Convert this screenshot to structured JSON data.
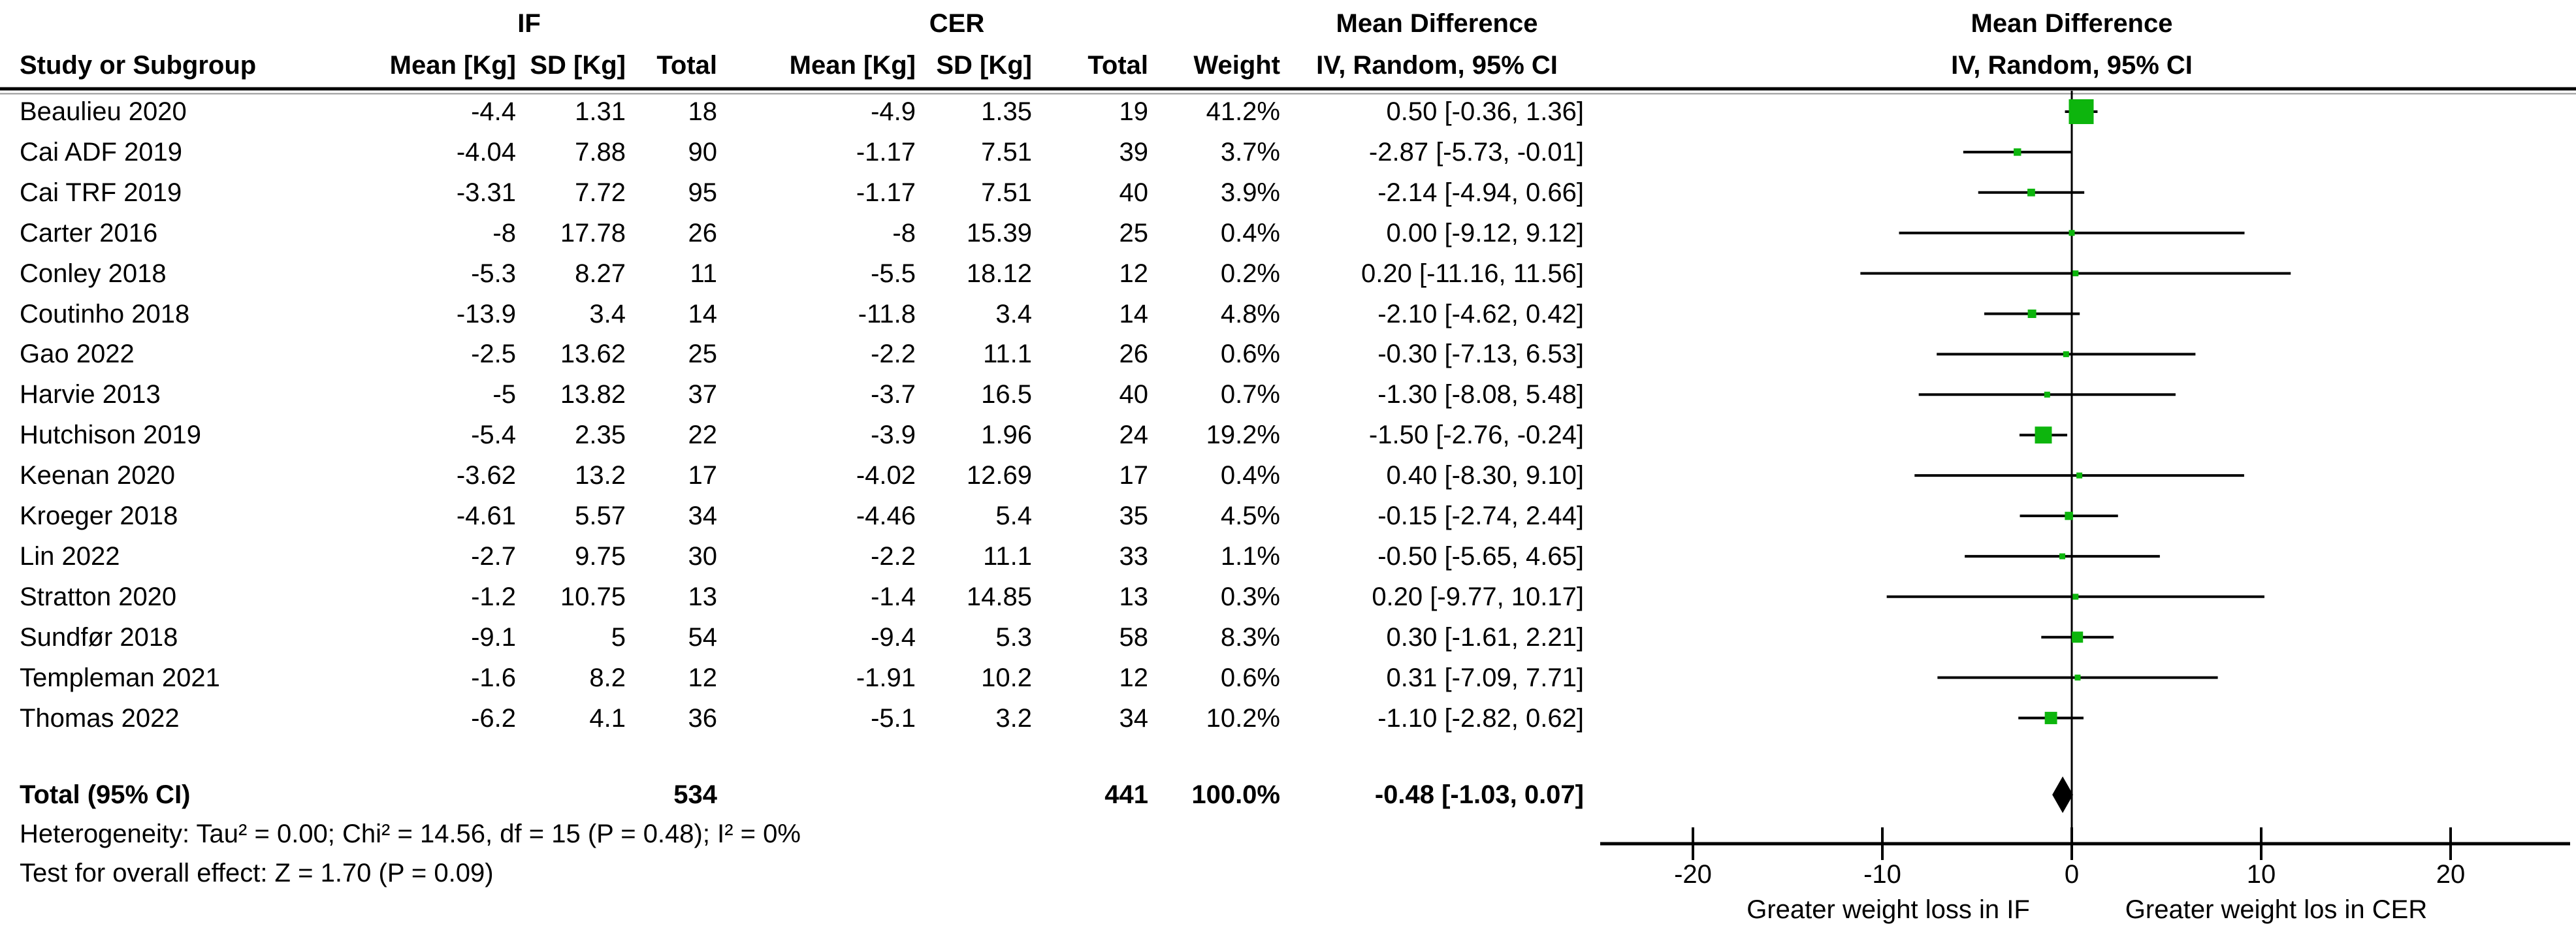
{
  "chart_data": {
    "type": "forest",
    "header": {
      "group_if": "IF",
      "group_cer": "CER",
      "md_title": "Mean Difference",
      "iv_sub": "IV, Random, 95% CI",
      "study": "Study or Subgroup",
      "mean": "Mean [Kg]",
      "sd": "SD [Kg]",
      "total": "Total",
      "weight": "Weight"
    },
    "studies": [
      {
        "name": "Beaulieu 2020",
        "if_mean": "-4.4",
        "if_sd": "1.31",
        "if_total": "18",
        "cer_mean": "-4.9",
        "cer_sd": "1.35",
        "cer_total": "19",
        "weight": "41.2%",
        "ci": "0.50 [-0.36, 1.36]",
        "est": 0.5,
        "lo": -0.36,
        "hi": 1.36,
        "w_pct": 41.2
      },
      {
        "name": "Cai ADF 2019",
        "if_mean": "-4.04",
        "if_sd": "7.88",
        "if_total": "90",
        "cer_mean": "-1.17",
        "cer_sd": "7.51",
        "cer_total": "39",
        "weight": "3.7%",
        "ci": "-2.87 [-5.73, -0.01]",
        "est": -2.87,
        "lo": -5.73,
        "hi": -0.01,
        "w_pct": 3.7
      },
      {
        "name": "Cai TRF 2019",
        "if_mean": "-3.31",
        "if_sd": "7.72",
        "if_total": "95",
        "cer_mean": "-1.17",
        "cer_sd": "7.51",
        "cer_total": "40",
        "weight": "3.9%",
        "ci": "-2.14 [-4.94, 0.66]",
        "est": -2.14,
        "lo": -4.94,
        "hi": 0.66,
        "w_pct": 3.9
      },
      {
        "name": "Carter 2016",
        "if_mean": "-8",
        "if_sd": "17.78",
        "if_total": "26",
        "cer_mean": "-8",
        "cer_sd": "15.39",
        "cer_total": "25",
        "weight": "0.4%",
        "ci": "0.00 [-9.12, 9.12]",
        "est": 0.0,
        "lo": -9.12,
        "hi": 9.12,
        "w_pct": 0.4
      },
      {
        "name": "Conley 2018",
        "if_mean": "-5.3",
        "if_sd": "8.27",
        "if_total": "11",
        "cer_mean": "-5.5",
        "cer_sd": "18.12",
        "cer_total": "12",
        "weight": "0.2%",
        "ci": "0.20 [-11.16, 11.56]",
        "est": 0.2,
        "lo": -11.16,
        "hi": 11.56,
        "w_pct": 0.2
      },
      {
        "name": "Coutinho 2018",
        "if_mean": "-13.9",
        "if_sd": "3.4",
        "if_total": "14",
        "cer_mean": "-11.8",
        "cer_sd": "3.4",
        "cer_total": "14",
        "weight": "4.8%",
        "ci": "-2.10 [-4.62, 0.42]",
        "est": -2.1,
        "lo": -4.62,
        "hi": 0.42,
        "w_pct": 4.8
      },
      {
        "name": "Gao 2022",
        "if_mean": "-2.5",
        "if_sd": "13.62",
        "if_total": "25",
        "cer_mean": "-2.2",
        "cer_sd": "11.1",
        "cer_total": "26",
        "weight": "0.6%",
        "ci": "-0.30 [-7.13, 6.53]",
        "est": -0.3,
        "lo": -7.13,
        "hi": 6.53,
        "w_pct": 0.6
      },
      {
        "name": "Harvie 2013",
        "if_mean": "-5",
        "if_sd": "13.82",
        "if_total": "37",
        "cer_mean": "-3.7",
        "cer_sd": "16.5",
        "cer_total": "40",
        "weight": "0.7%",
        "ci": "-1.30 [-8.08, 5.48]",
        "est": -1.3,
        "lo": -8.08,
        "hi": 5.48,
        "w_pct": 0.7
      },
      {
        "name": "Hutchison 2019",
        "if_mean": "-5.4",
        "if_sd": "2.35",
        "if_total": "22",
        "cer_mean": "-3.9",
        "cer_sd": "1.96",
        "cer_total": "24",
        "weight": "19.2%",
        "ci": "-1.50 [-2.76, -0.24]",
        "est": -1.5,
        "lo": -2.76,
        "hi": -0.24,
        "w_pct": 19.2
      },
      {
        "name": "Keenan 2020",
        "if_mean": "-3.62",
        "if_sd": "13.2",
        "if_total": "17",
        "cer_mean": "-4.02",
        "cer_sd": "12.69",
        "cer_total": "17",
        "weight": "0.4%",
        "ci": "0.40 [-8.30, 9.10]",
        "est": 0.4,
        "lo": -8.3,
        "hi": 9.1,
        "w_pct": 0.4
      },
      {
        "name": "Kroeger 2018",
        "if_mean": "-4.61",
        "if_sd": "5.57",
        "if_total": "34",
        "cer_mean": "-4.46",
        "cer_sd": "5.4",
        "cer_total": "35",
        "weight": "4.5%",
        "ci": "-0.15 [-2.74, 2.44]",
        "est": -0.15,
        "lo": -2.74,
        "hi": 2.44,
        "w_pct": 4.5
      },
      {
        "name": "Lin 2022",
        "if_mean": "-2.7",
        "if_sd": "9.75",
        "if_total": "30",
        "cer_mean": "-2.2",
        "cer_sd": "11.1",
        "cer_total": "33",
        "weight": "1.1%",
        "ci": "-0.50 [-5.65, 4.65]",
        "est": -0.5,
        "lo": -5.65,
        "hi": 4.65,
        "w_pct": 1.1
      },
      {
        "name": "Stratton 2020",
        "if_mean": "-1.2",
        "if_sd": "10.75",
        "if_total": "13",
        "cer_mean": "-1.4",
        "cer_sd": "14.85",
        "cer_total": "13",
        "weight": "0.3%",
        "ci": "0.20 [-9.77, 10.17]",
        "est": 0.2,
        "lo": -9.77,
        "hi": 10.17,
        "w_pct": 0.3
      },
      {
        "name": "Sundfør 2018",
        "if_mean": "-9.1",
        "if_sd": "5",
        "if_total": "54",
        "cer_mean": "-9.4",
        "cer_sd": "5.3",
        "cer_total": "58",
        "weight": "8.3%",
        "ci": "0.30 [-1.61, 2.21]",
        "est": 0.3,
        "lo": -1.61,
        "hi": 2.21,
        "w_pct": 8.3
      },
      {
        "name": "Templeman 2021",
        "if_mean": "-1.6",
        "if_sd": "8.2",
        "if_total": "12",
        "cer_mean": "-1.91",
        "cer_sd": "10.2",
        "cer_total": "12",
        "weight": "0.6%",
        "ci": "0.31 [-7.09, 7.71]",
        "est": 0.31,
        "lo": -7.09,
        "hi": 7.71,
        "w_pct": 0.6
      },
      {
        "name": "Thomas 2022",
        "if_mean": "-6.2",
        "if_sd": "4.1",
        "if_total": "36",
        "cer_mean": "-5.1",
        "cer_sd": "3.2",
        "cer_total": "34",
        "weight": "10.2%",
        "ci": "-1.10 [-2.82, 0.62]",
        "est": -1.1,
        "lo": -2.82,
        "hi": 0.62,
        "w_pct": 10.2
      }
    ],
    "total": {
      "label": "Total (95% CI)",
      "if_total": "534",
      "cer_total": "441",
      "weight": "100.0%",
      "ci": "-0.48 [-1.03, 0.07]",
      "est": -0.48,
      "lo": -1.03,
      "hi": 0.07
    },
    "footer": {
      "heterogeneity": "Heterogeneity: Tau² = 0.00; Chi² = 14.56, df = 15 (P = 0.48); I² = 0%",
      "overall_effect": "Test for overall effect: Z = 1.70 (P = 0.09)"
    },
    "axis": {
      "xlim": [
        -25.5,
        26.5
      ],
      "ticks": [
        -20,
        -10,
        0,
        10,
        20
      ],
      "tick_labels": [
        "-20",
        "-10",
        "0",
        "10",
        "20"
      ],
      "left_label": "Greater weight loss in IF",
      "right_label": "Greater weight los in CER"
    },
    "colors": {
      "square": "#0db50d",
      "diamond": "#000000",
      "line": "#000000",
      "separator_shadow": "#969696"
    }
  }
}
